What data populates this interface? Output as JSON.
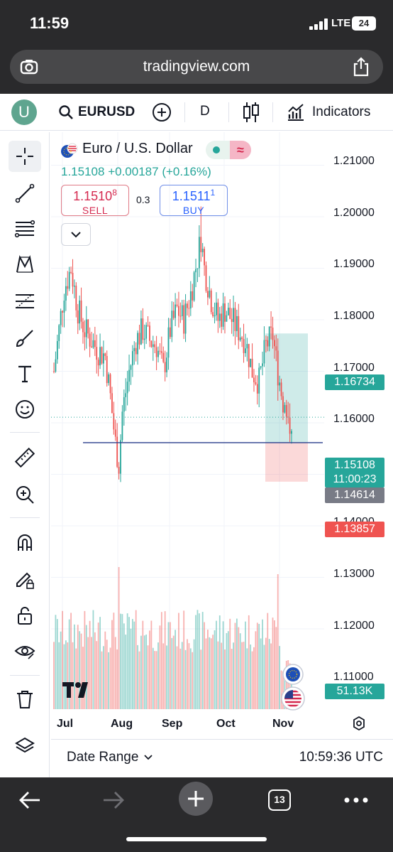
{
  "status_bar": {
    "time": "11:59",
    "network": "LTE",
    "battery": "24"
  },
  "browser": {
    "url": "tradingview.com",
    "tabs_count": "13"
  },
  "toolbar": {
    "avatar_letter": "U",
    "symbol": "EURUSD",
    "interval": "D",
    "indicators_label": "Indicators"
  },
  "legend": {
    "title": "Euro / U.S. Dollar",
    "last": "1.15108",
    "change": "+0.00187",
    "change_pct": "(+0.16%)",
    "sell_price_main": "1.1510",
    "sell_price_sup": "8",
    "sell_label": "SELL",
    "spread": "0.3",
    "buy_price_main": "1.1511",
    "buy_price_sup": "1",
    "buy_label": "BUY"
  },
  "price_scale": {
    "ticks": [
      "1.21000",
      "1.20000",
      "1.19000",
      "1.18000",
      "1.17000",
      "1.16000",
      "1.14000",
      "1.13000",
      "1.12000",
      "1.11000"
    ],
    "labels": [
      {
        "value": "1.16734",
        "color": "#26a69a"
      },
      {
        "value": "1.15108",
        "countdown": "11:00:23",
        "color": "#26a69a"
      },
      {
        "value": "1.14614",
        "color": "#787b86"
      },
      {
        "value": "1.13857",
        "color": "#ef5350"
      },
      {
        "value": "51.13K",
        "color": "#26a69a"
      }
    ]
  },
  "time_scale": {
    "ticks": [
      "Jul",
      "Aug",
      "Sep",
      "Oct",
      "Nov"
    ]
  },
  "bottom_bar": {
    "date_range_label": "Date Range",
    "time": "10:59:36 UTC"
  },
  "colors": {
    "up": "#26a69a",
    "down": "#ef5350",
    "line": "#2a3f8c"
  },
  "icons": [
    "crosshair-icon",
    "trend-line-icon",
    "fib-icon",
    "pattern-icon",
    "projection-icon",
    "brush-icon",
    "text-icon",
    "emoji-icon",
    "ruler-icon",
    "zoom-in-icon",
    "magnet-icon",
    "lock-drawings-icon",
    "unlock-icon",
    "eye-icon",
    "trash-icon",
    "layers-icon",
    "gear-icon"
  ]
}
